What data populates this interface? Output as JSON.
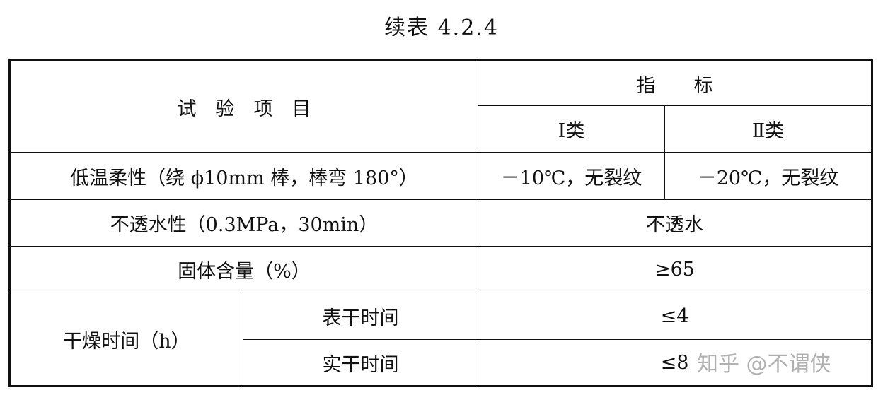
{
  "title": "续表 4.2.4",
  "header": {
    "item": "试　验　项　目",
    "indicator": "指　　标",
    "class_1": "Ⅰ类",
    "class_2": "Ⅱ类"
  },
  "rows": [
    {
      "item": "低温柔性（绕 ϕ10mm 棒，棒弯 180°）",
      "class_1": "－10℃，无裂纹",
      "class_2": "－20℃，无裂纹"
    },
    {
      "item": "不透水性（0.3MPa，30min）",
      "value": "不透水"
    },
    {
      "item": "固体含量（%）",
      "value": "≥65"
    },
    {
      "item": "干燥时间（h）",
      "sub": [
        {
          "name": "表干时间",
          "value": "≤4"
        },
        {
          "name": "实干时间",
          "value": "≤8"
        }
      ]
    }
  ],
  "watermark": "知乎 @不谓侠"
}
